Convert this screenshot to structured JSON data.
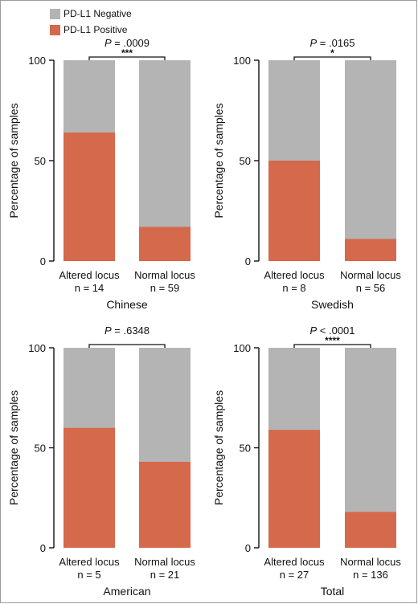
{
  "legend": {
    "negative": {
      "label": "PD-L1 Negative",
      "color": "#b4b4b4"
    },
    "positive": {
      "label": "PD-L1 Positive",
      "color": "#d4694b"
    }
  },
  "chart_data": [
    {
      "type": "bar",
      "stacked": true,
      "title": "Chinese",
      "ylabel": "Percentage of samples",
      "ylim": [
        0,
        100
      ],
      "yticks": [
        "0",
        "50",
        "100"
      ],
      "categories": [
        "Altered locus",
        "Normal locus"
      ],
      "n_labels": [
        "n = 14",
        "n = 59"
      ],
      "series": [
        {
          "name": "PD-L1 Positive",
          "values": [
            64,
            17
          ]
        },
        {
          "name": "PD-L1 Negative",
          "values": [
            36,
            83
          ]
        }
      ],
      "pvalue": "P = .0009",
      "significance": "***"
    },
    {
      "type": "bar",
      "stacked": true,
      "title": "Swedish",
      "ylabel": "Percentage of samples",
      "ylim": [
        0,
        100
      ],
      "yticks": [
        "0",
        "50",
        "100"
      ],
      "categories": [
        "Altered locus",
        "Normal locus"
      ],
      "n_labels": [
        "n = 8",
        "n = 56"
      ],
      "series": [
        {
          "name": "PD-L1 Positive",
          "values": [
            50,
            11
          ]
        },
        {
          "name": "PD-L1 Negative",
          "values": [
            50,
            89
          ]
        }
      ],
      "pvalue": "P = .0165",
      "significance": "*"
    },
    {
      "type": "bar",
      "stacked": true,
      "title": "American",
      "ylabel": "Percentage of samples",
      "ylim": [
        0,
        100
      ],
      "yticks": [
        "0",
        "50",
        "100"
      ],
      "categories": [
        "Altered locus",
        "Normal locus"
      ],
      "n_labels": [
        "n = 5",
        "n = 21"
      ],
      "series": [
        {
          "name": "PD-L1 Positive",
          "values": [
            60,
            43
          ]
        },
        {
          "name": "PD-L1 Negative",
          "values": [
            40,
            57
          ]
        }
      ],
      "pvalue": "P = .6348",
      "significance": ""
    },
    {
      "type": "bar",
      "stacked": true,
      "title": "Total",
      "ylabel": "Percentage of samples",
      "ylim": [
        0,
        100
      ],
      "yticks": [
        "0",
        "50",
        "100"
      ],
      "categories": [
        "Altered locus",
        "Normal locus"
      ],
      "n_labels": [
        "n = 27",
        "n = 136"
      ],
      "series": [
        {
          "name": "PD-L1 Positive",
          "values": [
            59,
            18
          ]
        },
        {
          "name": "PD-L1 Negative",
          "values": [
            41,
            82
          ]
        }
      ],
      "pvalue": "P < .0001",
      "significance": "****"
    }
  ]
}
